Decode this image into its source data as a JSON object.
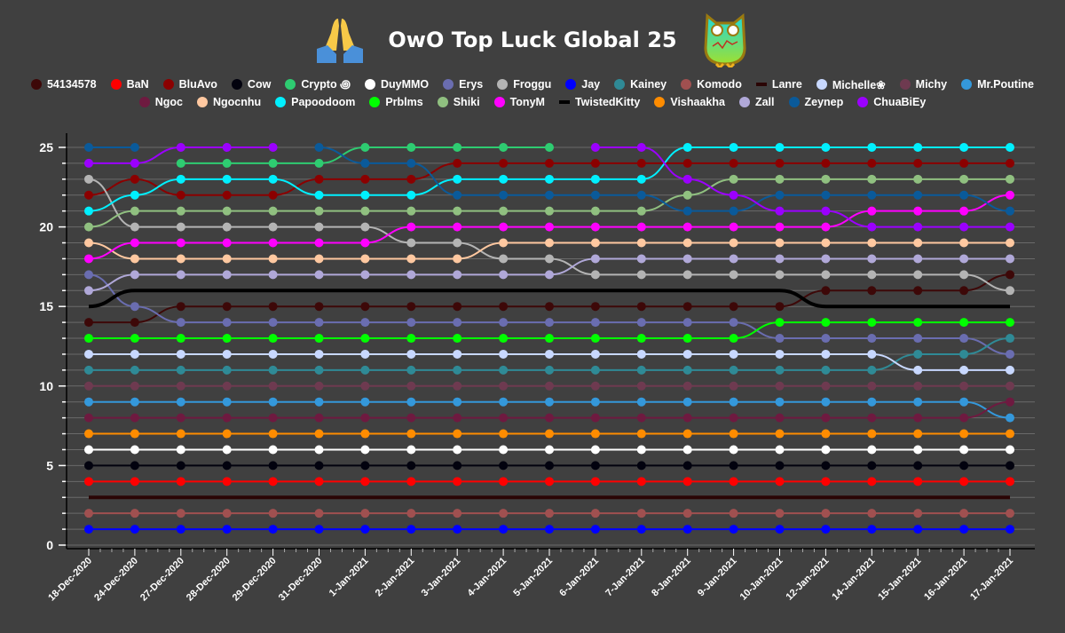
{
  "title": "OwO Top Luck Global 25",
  "title_icons": [
    "folded-hands-icon",
    "owl-icon"
  ],
  "chart_data": {
    "type": "line",
    "title": "OwO Top Luck Global 25",
    "xlabel": "",
    "ylabel": "",
    "ylim": [
      0,
      25
    ],
    "yticks": [
      "0",
      "5",
      "10",
      "15",
      "20",
      "25"
    ],
    "grid": true,
    "legend_position": "top",
    "categories": [
      "18-Dec-2020",
      "24-Dec-2020",
      "27-Dec-2020",
      "28-Dec-2020",
      "29-Dec-2020",
      "31-Dec-2020",
      "1-Jan-2021",
      "2-Jan-2021",
      "3-Jan-2021",
      "4-Jan-2021",
      "5-Jan-2021",
      "6-Jan-2021",
      "7-Jan-2021",
      "8-Jan-2021",
      "9-Jan-2021",
      "10-Jan-2021",
      "12-Jan-2021",
      "14-Jan-2021",
      "15-Jan-2021",
      "16-Jan-2021",
      "17-Jan-2021"
    ],
    "series": [
      {
        "name": "54134578",
        "color": "#3d0808",
        "markers": true,
        "values": [
          14,
          14,
          15,
          15,
          15,
          15,
          15,
          15,
          15,
          15,
          15,
          15,
          15,
          15,
          15,
          15,
          16,
          16,
          16,
          16,
          17
        ]
      },
      {
        "name": "BaN",
        "color": "#ff0000",
        "markers": true,
        "values": [
          4,
          4,
          4,
          4,
          4,
          4,
          4,
          4,
          4,
          4,
          4,
          4,
          4,
          4,
          4,
          4,
          4,
          4,
          4,
          4,
          4
        ]
      },
      {
        "name": "BluAvo",
        "color": "#8b0000",
        "markers": true,
        "values": [
          22,
          23,
          22,
          22,
          22,
          23,
          23,
          23,
          24,
          24,
          24,
          24,
          24,
          24,
          24,
          24,
          24,
          24,
          24,
          24,
          24
        ]
      },
      {
        "name": "Cow",
        "color": "#02020e",
        "markers": true,
        "values": [
          5,
          5,
          5,
          5,
          5,
          5,
          5,
          5,
          5,
          5,
          5,
          5,
          5,
          5,
          5,
          5,
          5,
          5,
          5,
          5,
          5
        ]
      },
      {
        "name": "Crypto ꩜",
        "color": "#2ecc71",
        "markers": true,
        "values": [
          null,
          null,
          24,
          24,
          24,
          24,
          25,
          25,
          25,
          25,
          25,
          null,
          null,
          null,
          null,
          null,
          null,
          null,
          null,
          null,
          null
        ]
      },
      {
        "name": "DuyMMO",
        "color": "#ffffff",
        "markers": true,
        "values": [
          6,
          6,
          6,
          6,
          6,
          6,
          6,
          6,
          6,
          6,
          6,
          6,
          6,
          6,
          6,
          6,
          6,
          6,
          6,
          6,
          6
        ]
      },
      {
        "name": "Erys",
        "color": "#6a6db0",
        "markers": true,
        "values": [
          17,
          15,
          14,
          14,
          14,
          14,
          14,
          14,
          14,
          14,
          14,
          14,
          14,
          14,
          14,
          13,
          13,
          13,
          13,
          13,
          12
        ]
      },
      {
        "name": "Froggu",
        "color": "#b4b4b4",
        "markers": true,
        "values": [
          23,
          20,
          20,
          20,
          20,
          20,
          20,
          19,
          19,
          18,
          18,
          17,
          17,
          17,
          17,
          17,
          17,
          17,
          17,
          17,
          16
        ]
      },
      {
        "name": "Jay",
        "color": "#0000ff",
        "markers": true,
        "values": [
          1,
          1,
          1,
          1,
          1,
          1,
          1,
          1,
          1,
          1,
          1,
          1,
          1,
          1,
          1,
          1,
          1,
          1,
          1,
          1,
          1
        ]
      },
      {
        "name": "Kainey",
        "color": "#2f8a96",
        "markers": true,
        "values": [
          11,
          11,
          11,
          11,
          11,
          11,
          11,
          11,
          11,
          11,
          11,
          11,
          11,
          11,
          11,
          11,
          11,
          11,
          12,
          12,
          13
        ]
      },
      {
        "name": "Komodo",
        "color": "#a05050",
        "markers": true,
        "values": [
          2,
          2,
          2,
          2,
          2,
          2,
          2,
          2,
          2,
          2,
          2,
          2,
          2,
          2,
          2,
          2,
          2,
          2,
          2,
          2,
          2
        ]
      },
      {
        "name": "Lanre",
        "color": "#2a0505",
        "markers": false,
        "values": [
          3,
          3,
          3,
          3,
          3,
          3,
          3,
          3,
          3,
          3,
          3,
          3,
          3,
          3,
          3,
          3,
          3,
          3,
          3,
          3,
          3
        ]
      },
      {
        "name": "Michelle❀",
        "color": "#c8d8ff",
        "markers": true,
        "values": [
          12,
          12,
          12,
          12,
          12,
          12,
          12,
          12,
          12,
          12,
          12,
          12,
          12,
          12,
          12,
          12,
          12,
          12,
          11,
          11,
          11
        ]
      },
      {
        "name": "Michy",
        "color": "#6e3a50",
        "markers": true,
        "values": [
          10,
          10,
          10,
          10,
          10,
          10,
          10,
          10,
          10,
          10,
          10,
          10,
          10,
          10,
          10,
          10,
          10,
          10,
          10,
          10,
          10
        ]
      },
      {
        "name": "Mr.Poutine",
        "color": "#3498db",
        "markers": true,
        "values": [
          9,
          9,
          9,
          9,
          9,
          9,
          9,
          9,
          9,
          9,
          9,
          9,
          9,
          9,
          9,
          9,
          9,
          9,
          9,
          9,
          8
        ]
      },
      {
        "name": "Ngoc",
        "color": "#6e1a40",
        "markers": true,
        "values": [
          8,
          8,
          8,
          8,
          8,
          8,
          8,
          8,
          8,
          8,
          8,
          8,
          8,
          8,
          8,
          8,
          8,
          8,
          8,
          8,
          9
        ]
      },
      {
        "name": "Ngocnhu",
        "color": "#ffc8a0",
        "markers": true,
        "values": [
          19,
          18,
          18,
          18,
          18,
          18,
          18,
          18,
          18,
          19,
          19,
          19,
          19,
          19,
          19,
          19,
          19,
          19,
          19,
          19,
          19
        ]
      },
      {
        "name": "Papoodoom",
        "color": "#00f0ff",
        "markers": true,
        "values": [
          21,
          22,
          23,
          23,
          23,
          22,
          22,
          22,
          23,
          23,
          23,
          23,
          23,
          25,
          25,
          25,
          25,
          25,
          25,
          25,
          25
        ]
      },
      {
        "name": "Prblms",
        "color": "#00ff00",
        "markers": true,
        "values": [
          13,
          13,
          13,
          13,
          13,
          13,
          13,
          13,
          13,
          13,
          13,
          13,
          13,
          13,
          13,
          14,
          14,
          14,
          14,
          14,
          14
        ]
      },
      {
        "name": "Shiki",
        "color": "#90c080",
        "markers": true,
        "values": [
          20,
          21,
          21,
          21,
          21,
          21,
          21,
          21,
          21,
          21,
          21,
          21,
          21,
          22,
          23,
          23,
          23,
          23,
          23,
          23,
          23
        ]
      },
      {
        "name": "TonyM",
        "color": "#ff00ff",
        "markers": true,
        "values": [
          18,
          19,
          19,
          19,
          19,
          19,
          19,
          20,
          20,
          20,
          20,
          20,
          20,
          20,
          20,
          20,
          20,
          21,
          21,
          21,
          22
        ]
      },
      {
        "name": "TwistedKitty",
        "color": "#000000",
        "markers": false,
        "values": [
          15,
          16,
          16,
          16,
          16,
          16,
          16,
          16,
          16,
          16,
          16,
          16,
          16,
          16,
          16,
          16,
          15,
          15,
          15,
          15,
          15
        ]
      },
      {
        "name": "Vishaakha",
        "color": "#ff8c00",
        "markers": true,
        "values": [
          7,
          7,
          7,
          7,
          7,
          7,
          7,
          7,
          7,
          7,
          7,
          7,
          7,
          7,
          7,
          7,
          7,
          7,
          7,
          7,
          7
        ]
      },
      {
        "name": "Zall",
        "color": "#b0a8d8",
        "markers": true,
        "values": [
          16,
          17,
          17,
          17,
          17,
          17,
          17,
          17,
          17,
          17,
          17,
          18,
          18,
          18,
          18,
          18,
          18,
          18,
          18,
          18,
          18
        ]
      },
      {
        "name": "Zeynep",
        "color": "#0a5a9a",
        "markers": true,
        "values": [
          25,
          25,
          null,
          null,
          null,
          25,
          24,
          24,
          22,
          22,
          22,
          22,
          22,
          21,
          21,
          22,
          22,
          22,
          22,
          22,
          21
        ]
      },
      {
        "name": "ChuaBiEy",
        "color": "#9b00ff",
        "markers": true,
        "values": [
          24,
          24,
          25,
          25,
          25,
          null,
          null,
          null,
          null,
          null,
          null,
          25,
          25,
          23,
          22,
          21,
          21,
          20,
          20,
          20,
          20
        ]
      }
    ]
  }
}
